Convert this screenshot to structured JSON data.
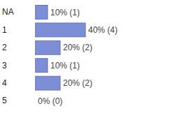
{
  "chart_data": {
    "type": "bar",
    "orientation": "horizontal",
    "categories": [
      "NA",
      "1",
      "2",
      "3",
      "4",
      "5"
    ],
    "values": [
      10,
      40,
      20,
      10,
      20,
      0
    ],
    "value_labels": [
      "10% (1)",
      "40% (4)",
      "20% (2)",
      "10% (1)",
      "20% (2)",
      "0% (0)"
    ],
    "color": "#7e8ed6",
    "xlim": [
      0,
      100
    ],
    "data_labels": true,
    "tick_labels": "y"
  }
}
